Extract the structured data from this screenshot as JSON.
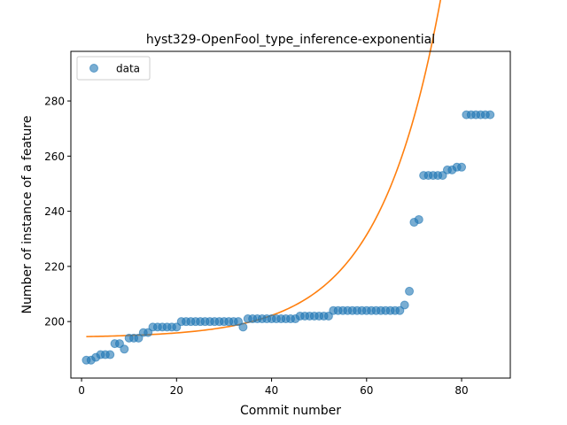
{
  "chart_data": {
    "type": "scatter",
    "title": "hyst329-OpenFool_type_inference-exponential",
    "xlabel": "Commit number",
    "ylabel": "Number of instance of a feature",
    "xlim": [
      -2.25,
      90.25
    ],
    "ylim": [
      179.5,
      298.0
    ],
    "xticks": [
      0,
      20,
      40,
      60,
      80
    ],
    "yticks": [
      200,
      220,
      240,
      260,
      280
    ],
    "grid": false,
    "legend_position": "top-left",
    "series": [
      {
        "name": "data",
        "kind": "scatter",
        "color": "#1f77b4",
        "x": [
          1,
          2,
          3,
          4,
          5,
          6,
          7,
          8,
          9,
          10,
          11,
          12,
          13,
          14,
          15,
          16,
          17,
          18,
          19,
          20,
          21,
          22,
          23,
          24,
          25,
          26,
          27,
          28,
          29,
          30,
          31,
          32,
          33,
          34,
          35,
          36,
          37,
          38,
          39,
          40,
          41,
          42,
          43,
          44,
          45,
          46,
          47,
          48,
          49,
          50,
          51,
          52,
          53,
          54,
          55,
          56,
          57,
          58,
          59,
          60,
          61,
          62,
          63,
          64,
          65,
          66,
          67,
          68,
          69,
          70,
          71,
          72,
          73,
          74,
          75,
          76,
          77,
          78,
          79,
          80,
          81,
          82,
          83,
          84,
          85,
          86
        ],
        "y": [
          186,
          186,
          187,
          188,
          188,
          188,
          192,
          192,
          190,
          194,
          194,
          194,
          196,
          196,
          198,
          198,
          198,
          198,
          198,
          198,
          200,
          200,
          200,
          200,
          200,
          200,
          200,
          200,
          200,
          200,
          200,
          200,
          200,
          198,
          201,
          201,
          201,
          201,
          201,
          201,
          201,
          201,
          201,
          201,
          201,
          202,
          202,
          202,
          202,
          202,
          202,
          202,
          204,
          204,
          204,
          204,
          204,
          204,
          204,
          204,
          204,
          204,
          204,
          204,
          204,
          204,
          204,
          206,
          211,
          236,
          237,
          253,
          253,
          253,
          253,
          253,
          255,
          255,
          256,
          256,
          275,
          275,
          275,
          275,
          275,
          275
        ]
      },
      {
        "name": "",
        "kind": "line",
        "color": "#ff7f0e",
        "fit": {
          "a": 0.3795,
          "b": 0.07646,
          "c": 194.13
        }
      }
    ]
  }
}
